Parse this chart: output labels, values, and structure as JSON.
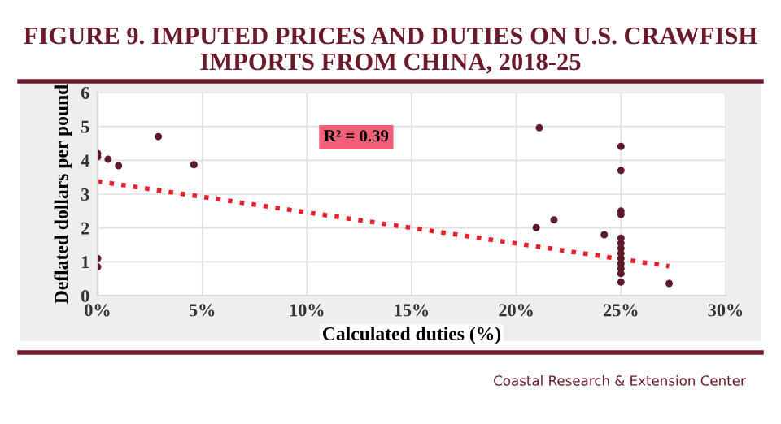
{
  "chart_data": {
    "type": "scatter",
    "title": "FIGURE 9. IMPUTED PRICES AND DUTIES ON U.S. CRAWFISH IMPORTS FROM CHINA, 2018-25",
    "xlabel": "Calculated duties (%)",
    "ylabel": "Deflated dollars per pound",
    "series": [
      {
        "color": "#5c1a2b",
        "marker": "circle",
        "x": [
          0,
          0,
          0,
          0,
          0.5,
          1.0,
          2.9,
          4.6,
          20.95,
          21.1,
          21.8,
          24.2,
          25,
          25,
          25,
          25,
          25,
          25,
          25,
          25,
          25,
          25,
          25,
          25,
          25,
          27.3
        ],
        "values": [
          4.2,
          4.1,
          1.1,
          0.85,
          4.03,
          3.84,
          4.7,
          3.87,
          2.01,
          4.96,
          2.24,
          1.8,
          4.41,
          3.7,
          2.5,
          2.4,
          1.7,
          1.55,
          1.4,
          1.25,
          1.1,
          0.95,
          0.8,
          0.65,
          0.4,
          0.36
        ]
      },
      {
        "type": "line",
        "color": "#e8202a",
        "marker": "none",
        "line_style": "dotted",
        "x": [
          0,
          27.3
        ],
        "values": [
          3.38,
          0.87
        ]
      }
    ],
    "xlim": [
      0,
      30
    ],
    "ylim": [
      0,
      6
    ],
    "xticks": [
      {
        "value": 0,
        "label": "0%"
      },
      {
        "value": 5,
        "label": "5%"
      },
      {
        "value": 10,
        "label": "10%"
      },
      {
        "value": 15,
        "label": "15%"
      },
      {
        "value": 20,
        "label": "20%"
      },
      {
        "value": 25,
        "label": "25%"
      },
      {
        "value": 30,
        "label": "30%"
      }
    ],
    "yticks": [
      0,
      1,
      2,
      3,
      4,
      5,
      6
    ],
    "grid": true,
    "annotations": [
      "R² = 0.39",
      "Coastal Research & Extension Center"
    ]
  }
}
